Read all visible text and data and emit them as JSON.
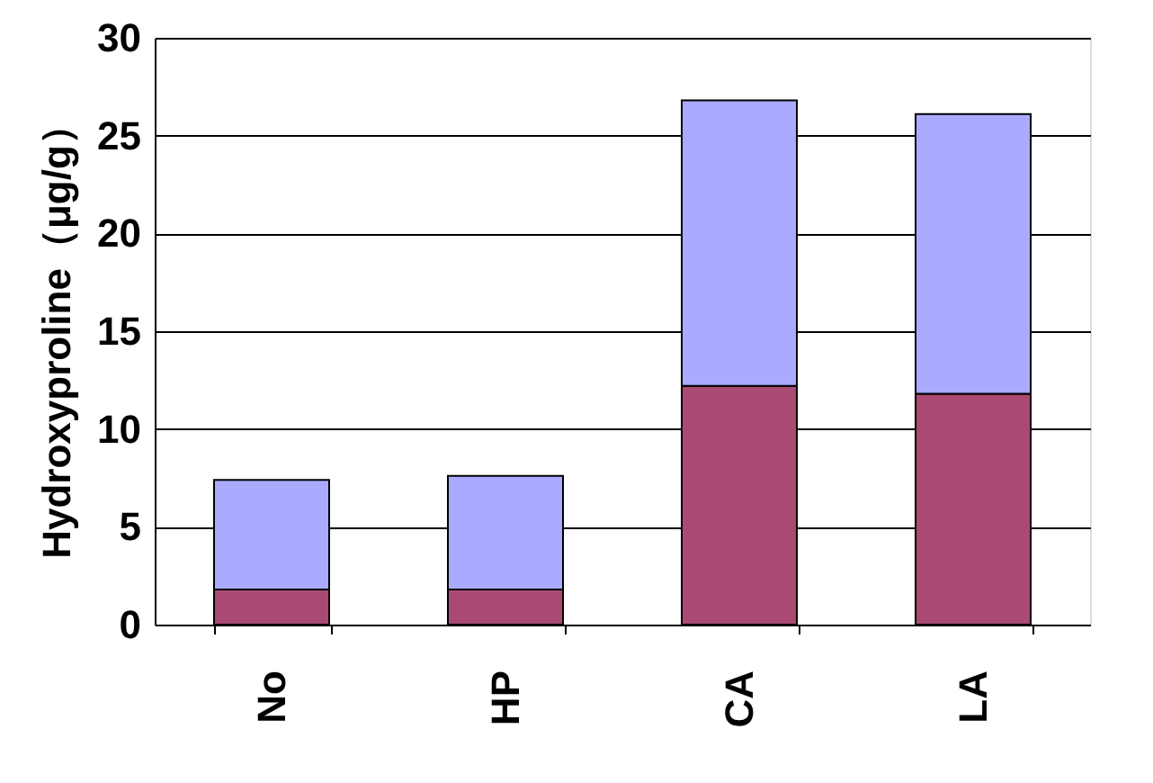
{
  "chart_data": {
    "type": "bar",
    "stacked": true,
    "ylabel": "Hydroxyproline（μg/g）",
    "categories": [
      "No",
      "HP",
      "CA",
      "LA"
    ],
    "series": [
      {
        "color": "#aa4a72",
        "values": [
          1.8,
          1.8,
          12.2,
          11.8
        ]
      },
      {
        "color": "#aaaaff",
        "values": [
          5.6,
          5.8,
          14.6,
          14.3
        ]
      }
    ],
    "ylim": [
      0,
      30
    ],
    "yticks": [
      0,
      5,
      10,
      15,
      20,
      25,
      30
    ],
    "grid": "y",
    "legend": false
  }
}
